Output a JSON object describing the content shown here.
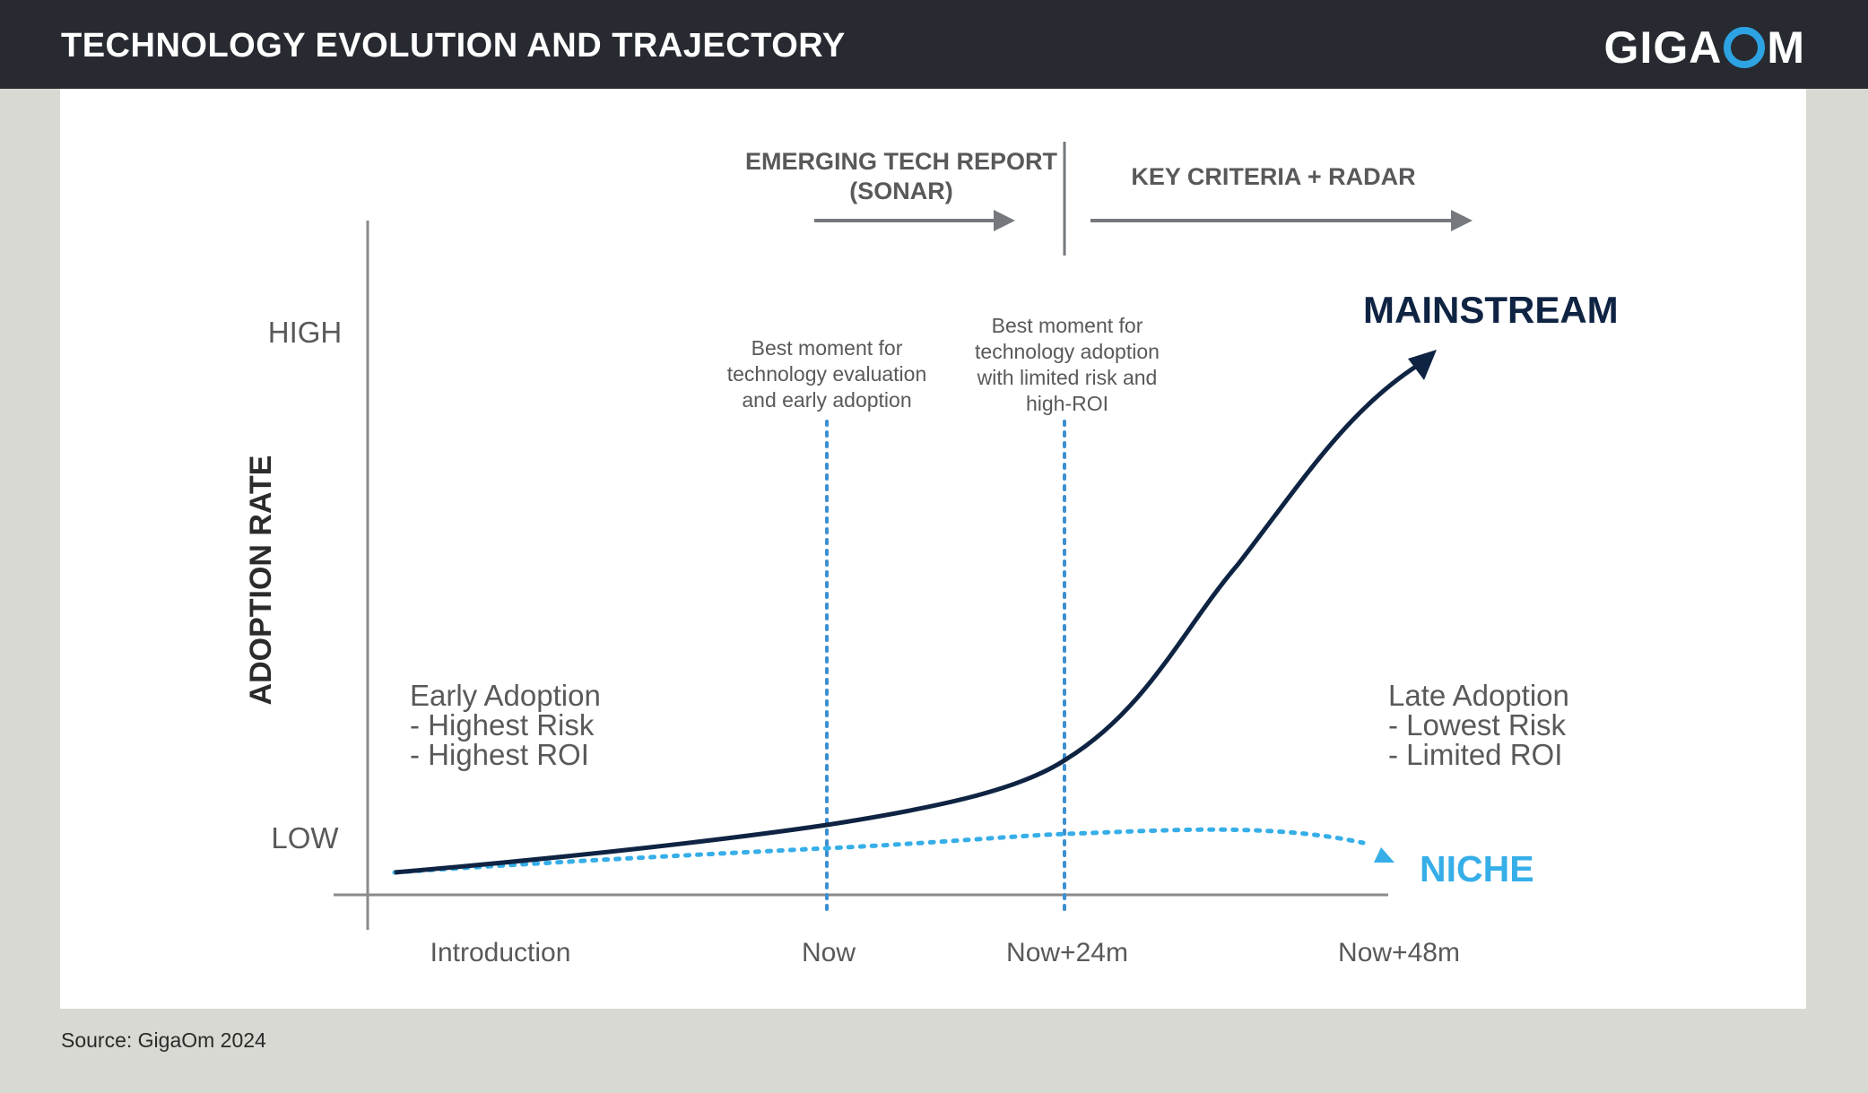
{
  "header": {
    "title": "TECHNOLOGY EVOLUTION AND TRAJECTORY",
    "logo_pre": "GIGA",
    "logo_post": "M"
  },
  "colors": {
    "header_bg": "#272b31",
    "accent_blue": "#2ea3e3",
    "navy": "#0f2443",
    "gray_text": "#58595b"
  },
  "phases": {
    "sonar_line1": "EMERGING TECH REPORT",
    "sonar_line2": "(SONAR)",
    "radar": "KEY CRITERIA + RADAR"
  },
  "axes": {
    "y_label": "ADOPTION RATE",
    "y_high": "HIGH",
    "y_low": "LOW",
    "x_ticks": [
      "Introduction",
      "Now",
      "Now+24m",
      "Now+48m"
    ]
  },
  "annotations": {
    "now_note": [
      "Best moment for",
      "technology evaluation",
      "and early adoption"
    ],
    "now24_note": [
      "Best moment for",
      "technology adoption",
      "with limited risk and",
      "high-ROI"
    ],
    "early": [
      "Early Adoption",
      "- Highest Risk",
      "- Highest ROI"
    ],
    "late": [
      "Late Adoption",
      "- Lowest Risk",
      "- Limited ROI"
    ]
  },
  "curves": {
    "mainstream": "MAINSTREAM",
    "niche": "NICHE"
  },
  "source": "Source: GigaOm 2024"
}
